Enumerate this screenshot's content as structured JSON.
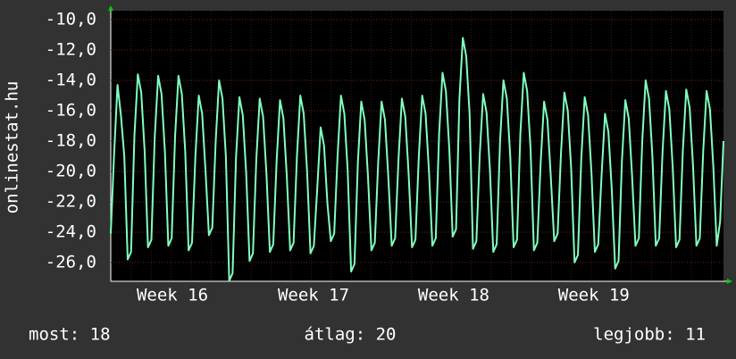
{
  "chart_data": {
    "type": "line",
    "y_label": "onlinestat.hu",
    "color": "#80ffbf",
    "ylim": [
      -27.24,
      -9.41
    ],
    "yticks": [
      {
        "value": -10,
        "label": "-10,0"
      },
      {
        "value": -12,
        "label": "-12,0"
      },
      {
        "value": -14,
        "label": "-14,0"
      },
      {
        "value": -16,
        "label": "-16,0"
      },
      {
        "value": -18,
        "label": "-18,0"
      },
      {
        "value": -20,
        "label": "-20,0"
      },
      {
        "value": -22,
        "label": "-22,0"
      },
      {
        "value": -24,
        "label": "-24,0"
      },
      {
        "value": -26,
        "label": "-26,0"
      }
    ],
    "xlim": [
      0,
      181
    ],
    "xticks": [
      {
        "value": 18.2,
        "label": "Week 16"
      },
      {
        "value": 59.9,
        "label": "Week 17"
      },
      {
        "value": 101.3,
        "label": "Week 18"
      },
      {
        "value": 142.7,
        "label": "Week 19"
      }
    ],
    "grid": true,
    "values": [
      -24.1,
      -18.8,
      -14.3,
      -16.3,
      -19.0,
      -25.8,
      -25.3,
      -17.6,
      -13.6,
      -14.8,
      -18.6,
      -25.0,
      -24.5,
      -17.7,
      -13.7,
      -14.9,
      -18.7,
      -24.9,
      -24.4,
      -17.7,
      -13.7,
      -14.9,
      -18.7,
      -25.2,
      -24.7,
      -19.0,
      -15.0,
      -16.2,
      -20.0,
      -24.2,
      -23.7,
      -18.0,
      -14.0,
      -15.2,
      -19.0,
      -27.2,
      -26.7,
      -19.1,
      -15.1,
      -16.3,
      -20.1,
      -25.9,
      -25.4,
      -19.2,
      -15.2,
      -16.4,
      -20.2,
      -25.3,
      -24.8,
      -19.3,
      -15.3,
      -16.5,
      -20.3,
      -25.2,
      -24.7,
      -19.0,
      -15.0,
      -16.2,
      -20.0,
      -25.4,
      -24.9,
      -21.1,
      -17.1,
      -18.3,
      -22.1,
      -24.6,
      -24.1,
      -19.0,
      -15.0,
      -16.2,
      -20.0,
      -26.6,
      -26.1,
      -19.4,
      -15.4,
      -16.6,
      -20.4,
      -25.2,
      -24.7,
      -19.4,
      -15.4,
      -16.6,
      -20.4,
      -24.9,
      -24.4,
      -19.2,
      -15.2,
      -16.4,
      -20.2,
      -25.0,
      -24.5,
      -19.0,
      -15.0,
      -16.2,
      -20.0,
      -24.9,
      -24.4,
      -17.5,
      -13.5,
      -14.7,
      -18.5,
      -24.3,
      -23.8,
      -15.2,
      -11.2,
      -12.4,
      -16.2,
      -25.1,
      -24.6,
      -18.9,
      -14.9,
      -16.1,
      -19.9,
      -25.3,
      -24.8,
      -18.0,
      -14.0,
      -15.2,
      -19.0,
      -25.0,
      -24.5,
      -17.5,
      -13.5,
      -14.7,
      -18.5,
      -25.2,
      -24.7,
      -19.4,
      -15.4,
      -16.6,
      -20.4,
      -24.6,
      -24.1,
      -18.8,
      -14.8,
      -16.0,
      -19.8,
      -26.0,
      -25.5,
      -19.1,
      -15.1,
      -16.3,
      -20.1,
      -25.3,
      -24.8,
      -20.2,
      -16.2,
      -17.4,
      -21.2,
      -26.4,
      -25.9,
      -19.3,
      -15.3,
      -16.5,
      -20.3,
      -24.9,
      -24.4,
      -18.0,
      -14.0,
      -15.2,
      -19.0,
      -24.9,
      -24.4,
      -18.7,
      -14.7,
      -15.9,
      -19.7,
      -25.0,
      -24.5,
      -18.6,
      -14.6,
      -15.8,
      -19.6,
      -24.9,
      -24.4,
      -18.7,
      -14.7,
      -15.9,
      -19.7,
      -24.9,
      -23.3,
      -18.0
    ],
    "footer": [
      "most: 18",
      "átlag: 20",
      "legjobb: 11"
    ]
  }
}
